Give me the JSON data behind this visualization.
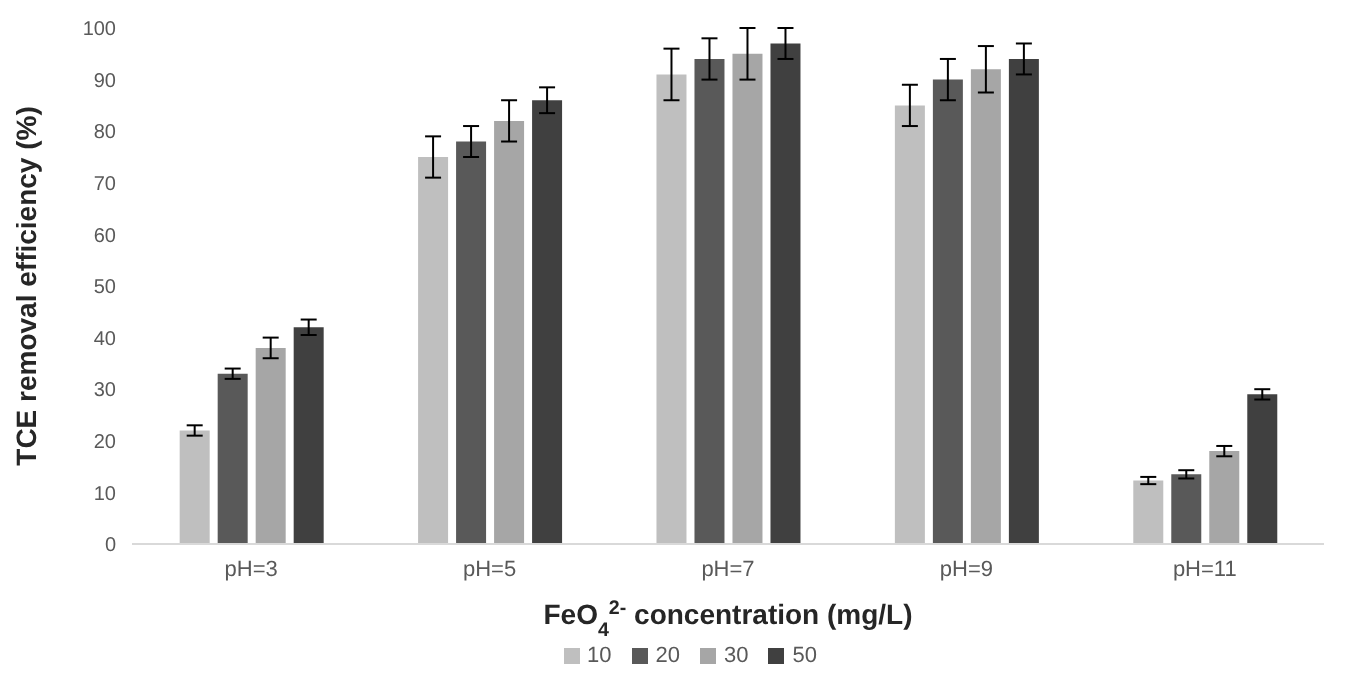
{
  "chart_data": {
    "type": "bar",
    "xlabel": "FeO$_{4}$$^{2-}$ concentration (mg/L)",
    "ylabel": "TCE removal efficiency (%)",
    "categories": [
      "pH=3",
      "pH=5",
      "pH=7",
      "pH=9",
      "pH=11"
    ],
    "series": [
      {
        "name": "10",
        "color": "#bfbfbf",
        "values": [
          22,
          75,
          91,
          85,
          12.3
        ],
        "errors": [
          1,
          4,
          5,
          4,
          0.7
        ]
      },
      {
        "name": "20",
        "color": "#595959",
        "values": [
          33,
          78,
          94,
          90,
          13.5
        ],
        "errors": [
          1,
          3,
          4,
          4,
          0.8
        ]
      },
      {
        "name": "30",
        "color": "#a6a6a6",
        "values": [
          38,
          82,
          95,
          92,
          18
        ],
        "errors": [
          2,
          4,
          5,
          4.5,
          1
        ]
      },
      {
        "name": "50",
        "color": "#404040",
        "values": [
          42,
          86,
          97,
          94,
          29
        ],
        "errors": [
          1.5,
          2.5,
          3,
          3,
          1
        ]
      }
    ],
    "ylim": [
      0,
      100
    ],
    "yticks": [
      0,
      10,
      20,
      30,
      40,
      50,
      60,
      70,
      80,
      90,
      100
    ],
    "grid": false,
    "legend": "bottom"
  }
}
